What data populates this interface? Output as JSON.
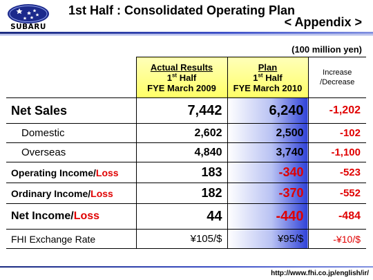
{
  "brand": {
    "name": "SUBARU"
  },
  "header": {
    "title": "1st Half : Consolidated Operating Plan",
    "subtitle": "< Appendix >"
  },
  "unit": "(100 million yen)",
  "columns": {
    "actual": {
      "line1": "Actual Results",
      "line2_num": "1",
      "line2_sup": "st",
      "line2_rest": " Half",
      "line3": "FYE March 2009"
    },
    "plan": {
      "line1": "Plan",
      "line2_num": "1",
      "line2_sup": "st",
      "line2_rest": " Half",
      "line3": "FYE March 2010"
    },
    "diff": {
      "line1": "Increase",
      "line2": "/Decrease"
    }
  },
  "rows": [
    {
      "label": "Net Sales",
      "actual": "7,442",
      "plan": "6,240",
      "diff": "-1,202"
    },
    {
      "label": "Domestic",
      "actual": "2,602",
      "plan": "2,500",
      "diff": "-102"
    },
    {
      "label": "Overseas",
      "actual": "4,840",
      "plan": "3,740",
      "diff": "-1,100"
    },
    {
      "label_main": "Operating Income/",
      "label_loss": "Loss",
      "actual": "183",
      "plan": "-340",
      "diff": "-523"
    },
    {
      "label_main": "Ordinary Income/",
      "label_loss": "Loss",
      "actual": "182",
      "plan": "-370",
      "diff": "-552"
    },
    {
      "label_main": "Net Income/",
      "label_loss": "Loss",
      "actual": "44",
      "plan": "-440",
      "diff": "-484"
    },
    {
      "label": "FHI Exchange Rate",
      "actual": "¥105/$",
      "plan": "¥95/$",
      "diff": "-¥10/$"
    }
  ],
  "footer": {
    "url": "http://www.fhi.co.jp/english/ir/"
  },
  "colors": {
    "accent_blue": "#2f42d8",
    "header_yellow": "#ffff66",
    "negative_red": "#e00000"
  }
}
